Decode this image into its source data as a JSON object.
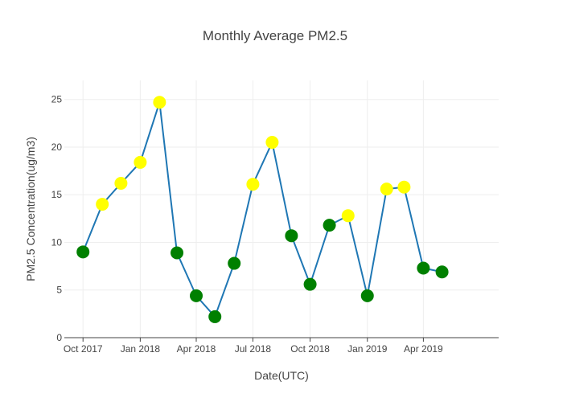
{
  "chart_data": {
    "type": "line",
    "title": "Monthly Average PM2.5",
    "xlabel": "Date(UTC)",
    "ylabel": "PM2.5 Concentration(ug/m3)",
    "ylim": [
      0,
      27
    ],
    "yticks": [
      0,
      5,
      10,
      15,
      20,
      25
    ],
    "xticks": [
      {
        "date": "2017-10-01",
        "label": "Oct 2017"
      },
      {
        "date": "2018-01-01",
        "label": "Jan 2018"
      },
      {
        "date": "2018-04-01",
        "label": "Apr 2018"
      },
      {
        "date": "2018-07-01",
        "label": "Jul 2018"
      },
      {
        "date": "2018-10-01",
        "label": "Oct 2018"
      },
      {
        "date": "2019-01-01",
        "label": "Jan 2019"
      },
      {
        "date": "2019-04-01",
        "label": "Apr 2019"
      }
    ],
    "xlim": [
      "2017-09-01",
      "2019-07-31"
    ],
    "grid": true,
    "line_color": "#1f77b4",
    "marker_colors": {
      "green": "#008000",
      "yellow": "#ffff00"
    },
    "series": [
      {
        "x": [
          "2017-10-01",
          "2017-11-01",
          "2017-12-01",
          "2018-01-01",
          "2018-02-01",
          "2018-03-01",
          "2018-04-01",
          "2018-05-01",
          "2018-06-01",
          "2018-07-01",
          "2018-08-01",
          "2018-09-01",
          "2018-10-01",
          "2018-11-01",
          "2018-12-01",
          "2019-01-01",
          "2019-02-01",
          "2019-03-01",
          "2019-04-01",
          "2019-05-01"
        ],
        "y": [
          9.0,
          14.0,
          16.2,
          18.4,
          24.7,
          8.9,
          4.4,
          2.2,
          7.8,
          16.1,
          20.5,
          10.7,
          5.6,
          11.8,
          12.8,
          4.4,
          15.6,
          15.8,
          7.3,
          6.9
        ],
        "marker_color": [
          "green",
          "yellow",
          "yellow",
          "yellow",
          "yellow",
          "green",
          "green",
          "green",
          "green",
          "yellow",
          "yellow",
          "green",
          "green",
          "green",
          "yellow",
          "green",
          "yellow",
          "yellow",
          "green",
          "green"
        ]
      }
    ]
  }
}
